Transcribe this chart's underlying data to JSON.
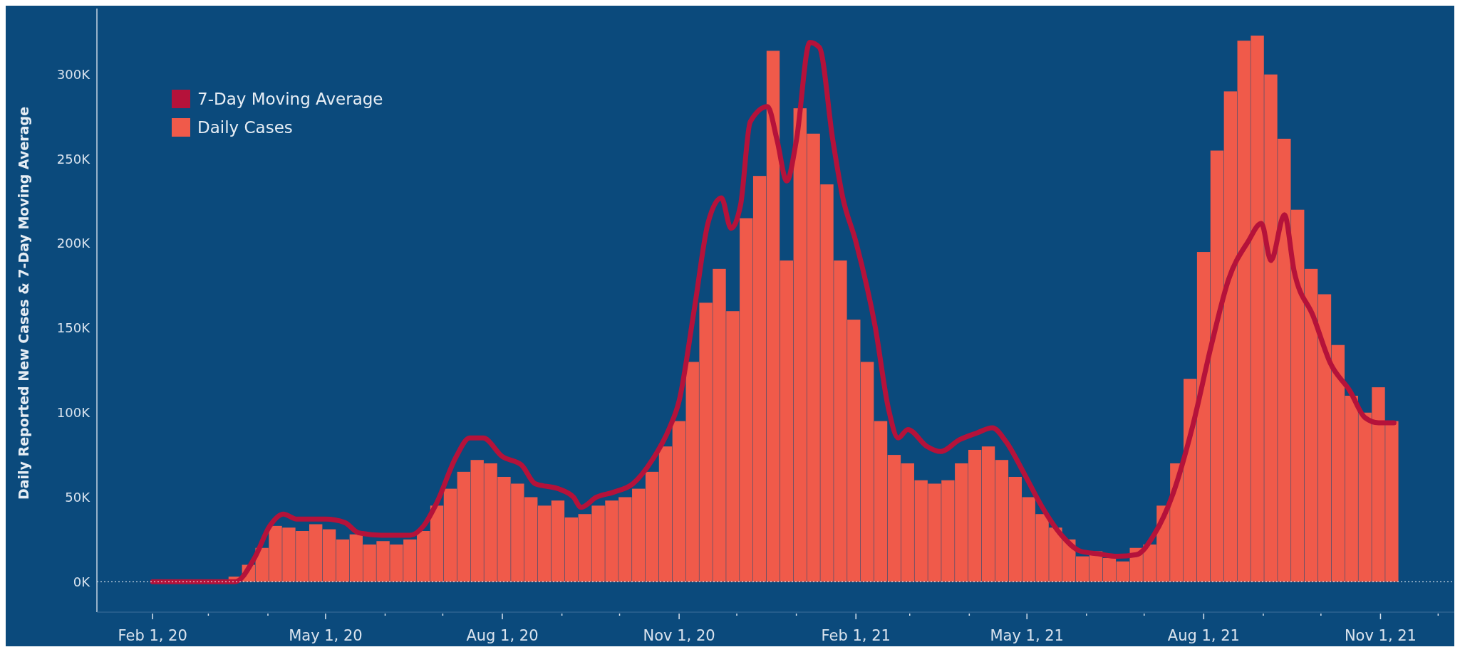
{
  "chart_data": {
    "type": "bar",
    "ylabel": "Daily Reported New Cases & 7-Day Moving Average",
    "xlim": [
      "2020-01-03",
      "2021-12-12"
    ],
    "xticks": [
      {
        "value": "2020-02-01",
        "label": "Feb 1, 20"
      },
      {
        "value": "2020-03-01",
        "label": null
      },
      {
        "value": "2020-04-01",
        "label": null
      },
      {
        "value": "2020-05-01",
        "label": "May 1, 20"
      },
      {
        "value": "2020-06-01",
        "label": null
      },
      {
        "value": "2020-07-01",
        "label": null
      },
      {
        "value": "2020-08-01",
        "label": "Aug 1, 20"
      },
      {
        "value": "2020-09-01",
        "label": null
      },
      {
        "value": "2020-10-01",
        "label": null
      },
      {
        "value": "2020-11-01",
        "label": "Nov 1, 20"
      },
      {
        "value": "2020-12-01",
        "label": null
      },
      {
        "value": "2021-01-01",
        "label": null
      },
      {
        "value": "2021-02-01",
        "label": "Feb 1, 21"
      },
      {
        "value": "2021-03-01",
        "label": null
      },
      {
        "value": "2021-04-01",
        "label": null
      },
      {
        "value": "2021-05-01",
        "label": "May 1, 21"
      },
      {
        "value": "2021-06-01",
        "label": null
      },
      {
        "value": "2021-07-01",
        "label": null
      },
      {
        "value": "2021-08-01",
        "label": "Aug 1, 21"
      },
      {
        "value": "2021-09-01",
        "label": null
      },
      {
        "value": "2021-10-01",
        "label": null
      },
      {
        "value": "2021-11-01",
        "label": "Nov 1, 21"
      },
      {
        "value": "2021-12-01",
        "label": null
      }
    ],
    "ylim": [
      -18000,
      339000
    ],
    "yticks": [
      {
        "value": 0,
        "label": "0K"
      },
      {
        "value": 50000,
        "label": "50K"
      },
      {
        "value": 100000,
        "label": "100K"
      },
      {
        "value": 150000,
        "label": "150K"
      },
      {
        "value": 200000,
        "label": "200K"
      },
      {
        "value": 250000,
        "label": "250K"
      },
      {
        "value": 300000,
        "label": "300K"
      }
    ],
    "grid": false,
    "legend": "top left",
    "ref_lines": [
      {
        "axis": "y",
        "value": 0,
        "color": "#ffffff",
        "line_style": "dotted"
      }
    ],
    "series": [
      {
        "name": "7-Day Moving Average",
        "type": "line",
        "color": "#b5123a",
        "line_style": "solid",
        "marker": "none",
        "x": [
          "2020-02-01",
          "2020-02-29",
          "2020-03-15",
          "2020-03-25",
          "2020-04-02",
          "2020-04-09",
          "2020-04-16",
          "2020-05-01",
          "2020-05-11",
          "2020-05-18",
          "2020-05-30",
          "2020-06-14",
          "2020-06-21",
          "2020-06-28",
          "2020-07-08",
          "2020-07-15",
          "2020-07-22",
          "2020-08-01",
          "2020-08-11",
          "2020-08-18",
          "2020-08-30",
          "2020-09-07",
          "2020-09-11",
          "2020-09-19",
          "2020-09-28",
          "2020-10-08",
          "2020-10-18",
          "2020-10-27",
          "2020-11-01",
          "2020-11-09",
          "2020-11-16",
          "2020-11-23",
          "2020-11-28",
          "2020-12-03",
          "2020-12-08",
          "2020-12-17",
          "2020-12-22",
          "2020-12-27",
          "2021-01-01",
          "2021-01-08",
          "2021-01-13",
          "2021-01-20",
          "2021-01-25",
          "2021-02-01",
          "2021-02-11",
          "2021-02-18",
          "2021-02-23",
          "2021-02-28",
          "2021-03-10",
          "2021-03-17",
          "2021-03-27",
          "2021-04-05",
          "2021-04-13",
          "2021-04-20",
          "2021-04-30",
          "2021-05-09",
          "2021-05-19",
          "2021-05-29",
          "2021-06-07",
          "2021-06-17",
          "2021-06-27",
          "2021-07-06",
          "2021-07-16",
          "2021-07-26",
          "2021-08-05",
          "2021-08-14",
          "2021-08-24",
          "2021-08-31",
          "2021-09-05",
          "2021-09-12",
          "2021-09-17",
          "2021-09-27",
          "2021-10-06",
          "2021-10-16",
          "2021-10-24",
          "2021-10-31",
          "2021-11-08"
        ],
        "values": [
          0,
          0,
          0,
          14000,
          33000,
          40000,
          37000,
          37000,
          35000,
          29000,
          27500,
          27500,
          33000,
          47000,
          74000,
          85000,
          85000,
          74000,
          69000,
          58000,
          55000,
          50000,
          44000,
          50000,
          53000,
          58000,
          72000,
          91000,
          107000,
          162000,
          212000,
          227000,
          209000,
          223000,
          272000,
          281000,
          261000,
          237000,
          261000,
          319000,
          316000,
          261000,
          228000,
          201000,
          151000,
          102000,
          85000,
          90000,
          80000,
          77000,
          84000,
          88000,
          91000,
          83000,
          63000,
          44000,
          27500,
          18000,
          16500,
          15000,
          16000,
          27500,
          52000,
          91000,
          140000,
          179000,
          201000,
          212000,
          190000,
          217000,
          184000,
          157000,
          129000,
          113000,
          97000,
          94000,
          94000
        ]
      },
      {
        "name": "Daily Cases",
        "color": "#f05a4a",
        "x": [
          "2020-03-01",
          "2020-03-08",
          "2020-03-15",
          "2020-03-22",
          "2020-03-29",
          "2020-04-05",
          "2020-04-12",
          "2020-04-19",
          "2020-04-26",
          "2020-05-03",
          "2020-05-10",
          "2020-05-17",
          "2020-05-24",
          "2020-05-31",
          "2020-06-07",
          "2020-06-14",
          "2020-06-21",
          "2020-06-28",
          "2020-07-05",
          "2020-07-12",
          "2020-07-19",
          "2020-07-26",
          "2020-08-02",
          "2020-08-09",
          "2020-08-16",
          "2020-08-23",
          "2020-08-30",
          "2020-09-06",
          "2020-09-13",
          "2020-09-20",
          "2020-09-27",
          "2020-10-04",
          "2020-10-11",
          "2020-10-18",
          "2020-10-25",
          "2020-11-01",
          "2020-11-08",
          "2020-11-15",
          "2020-11-22",
          "2020-11-29",
          "2020-12-06",
          "2020-12-13",
          "2020-12-20",
          "2020-12-27",
          "2021-01-03",
          "2021-01-10",
          "2021-01-17",
          "2021-01-24",
          "2021-01-31",
          "2021-02-07",
          "2021-02-14",
          "2021-02-21",
          "2021-02-28",
          "2021-03-07",
          "2021-03-14",
          "2021-03-21",
          "2021-03-28",
          "2021-04-04",
          "2021-04-11",
          "2021-04-18",
          "2021-04-25",
          "2021-05-02",
          "2021-05-09",
          "2021-05-16",
          "2021-05-23",
          "2021-05-30",
          "2021-06-06",
          "2021-06-13",
          "2021-06-20",
          "2021-06-27",
          "2021-07-04",
          "2021-07-11",
          "2021-07-18",
          "2021-07-25",
          "2021-08-01",
          "2021-08-08",
          "2021-08-15",
          "2021-08-22",
          "2021-08-29",
          "2021-09-05",
          "2021-09-12",
          "2021-09-19",
          "2021-09-26",
          "2021-10-03",
          "2021-10-10",
          "2021-10-17",
          "2021-10-24",
          "2021-10-31",
          "2021-11-07"
        ],
        "values": [
          0,
          500,
          3000,
          10000,
          20000,
          33000,
          32000,
          30000,
          34000,
          31000,
          25000,
          28000,
          22000,
          24000,
          22000,
          25000,
          30000,
          45000,
          55000,
          65000,
          72000,
          70000,
          62000,
          58000,
          50000,
          45000,
          48000,
          38000,
          40000,
          45000,
          48000,
          50000,
          55000,
          65000,
          80000,
          95000,
          130000,
          165000,
          185000,
          160000,
          215000,
          240000,
          314000,
          190000,
          280000,
          265000,
          235000,
          190000,
          155000,
          130000,
          95000,
          75000,
          70000,
          60000,
          58000,
          60000,
          70000,
          78000,
          80000,
          72000,
          62000,
          50000,
          40000,
          32000,
          25000,
          15000,
          18000,
          14000,
          12000,
          20000,
          22000,
          45000,
          70000,
          120000,
          195000,
          255000,
          290000,
          320000,
          323000,
          300000,
          262000,
          220000,
          185000,
          170000,
          140000,
          110000,
          100000,
          115000,
          95000
        ]
      }
    ]
  }
}
